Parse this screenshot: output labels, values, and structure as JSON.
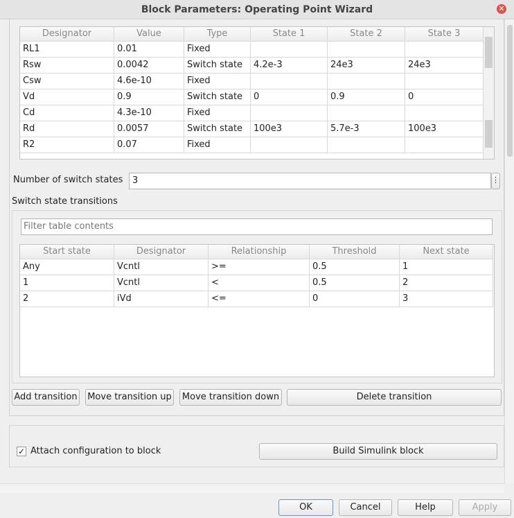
{
  "window": {
    "title": "Block Parameters: Operating Point Wizard"
  },
  "parameter_table": {
    "columns": [
      "Designator",
      "Value",
      "Type",
      "State 1",
      "State 2",
      "State 3"
    ],
    "rows": [
      [
        "RL1",
        "0.01",
        "Fixed",
        "",
        "",
        ""
      ],
      [
        "Rsw",
        "0.0042",
        "Switch state",
        "4.2e-3",
        "24e3",
        "24e3"
      ],
      [
        "Csw",
        "4.6e-10",
        "Fixed",
        "",
        "",
        ""
      ],
      [
        "Vd",
        "0.9",
        "Switch state",
        "0",
        "0.9",
        "0"
      ],
      [
        "Cd",
        "4.3e-10",
        "Fixed",
        "",
        "",
        ""
      ],
      [
        "Rd",
        "0.0057",
        "Switch state",
        "100e3",
        "5.7e-3",
        "100e3"
      ],
      [
        "R2",
        "0.07",
        "Fixed",
        "",
        "",
        ""
      ]
    ]
  },
  "switch_states": {
    "label": "Number of switch states",
    "value": "3"
  },
  "transitions": {
    "label": "Switch state transitions",
    "filter_placeholder": "Filter table contents",
    "columns": [
      "Start state",
      "Designator",
      "Relationship",
      "Threshold",
      "Next state"
    ],
    "rows": [
      [
        "Any",
        "Vcntl",
        ">=",
        "0.5",
        "1"
      ],
      [
        "1",
        "Vcntl",
        "<",
        "0.5",
        "2"
      ],
      [
        "2",
        "iVd",
        "<=",
        "0",
        "3"
      ]
    ],
    "buttons": [
      "Add transition",
      "Move transition up",
      "Move transition down",
      "Delete transition"
    ]
  },
  "attach": {
    "label": "Attach configuration to block",
    "checked": true
  },
  "build_button": "Build Simulink block",
  "footer": [
    "OK",
    "Cancel",
    "Help",
    "Apply"
  ]
}
